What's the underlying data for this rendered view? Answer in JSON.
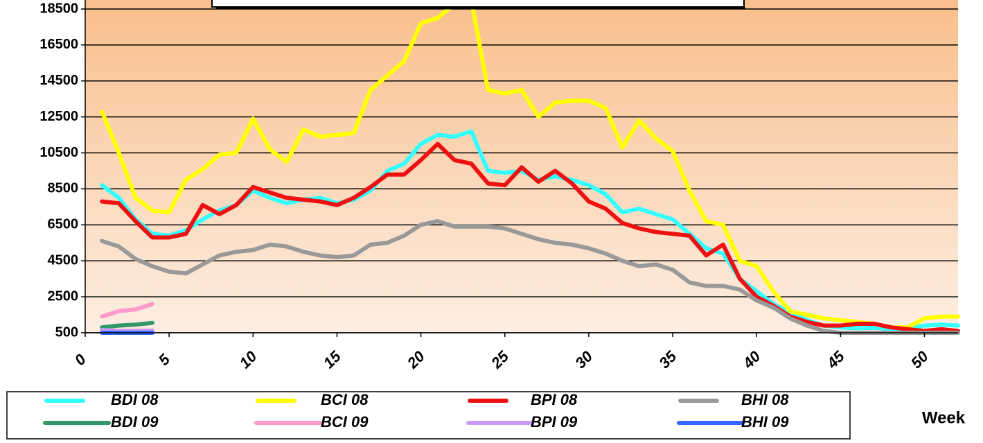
{
  "chart_data": {
    "type": "line",
    "x_label": "Week",
    "x": [
      1,
      2,
      3,
      4,
      5,
      6,
      7,
      8,
      9,
      10,
      11,
      12,
      13,
      14,
      15,
      16,
      17,
      18,
      19,
      20,
      21,
      22,
      23,
      24,
      25,
      26,
      27,
      28,
      29,
      30,
      31,
      32,
      33,
      34,
      35,
      36,
      37,
      38,
      39,
      40,
      41,
      42,
      43,
      44,
      45,
      46,
      47,
      48,
      49,
      50,
      51,
      52
    ],
    "xlim": [
      0,
      52
    ],
    "xticks": [
      0,
      5,
      10,
      15,
      20,
      25,
      30,
      35,
      40,
      45,
      50
    ],
    "ylim": [
      500,
      19000
    ],
    "yticks": [
      500,
      2500,
      4500,
      6500,
      8500,
      10500,
      12500,
      14500,
      16500,
      18500
    ],
    "grid": true,
    "series": [
      {
        "name": "BDI 08",
        "color": "#33ffff",
        "values": [
          8700,
          8000,
          6800,
          6000,
          5900,
          6200,
          6800,
          7300,
          7600,
          8400,
          8000,
          7700,
          7900,
          8000,
          7700,
          7900,
          8400,
          9500,
          9900,
          11000,
          11500,
          11400,
          11700,
          9500,
          9400,
          9500,
          9000,
          9200,
          9000,
          8700,
          8200,
          7200,
          7400,
          7100,
          6800,
          6000,
          5200,
          4900,
          3500,
          2800,
          2100,
          1600,
          1200,
          900,
          800,
          750,
          780,
          700,
          720,
          900,
          950,
          900
        ]
      },
      {
        "name": "BCI 08",
        "color": "#ffff00",
        "values": [
          12800,
          10500,
          8000,
          7300,
          7200,
          9000,
          9600,
          10400,
          10500,
          12400,
          10700,
          10000,
          11800,
          11400,
          11500,
          11600,
          14000,
          14800,
          15600,
          17700,
          18000,
          18800,
          19000,
          14000,
          13800,
          14000,
          12500,
          13300,
          13400,
          13400,
          13000,
          10800,
          12300,
          11300,
          10600,
          8400,
          6700,
          6500,
          4500,
          4200,
          2800,
          1700,
          1500,
          1300,
          1200,
          1100,
          1000,
          800,
          800,
          1300,
          1400,
          1400
        ]
      },
      {
        "name": "BPI 08",
        "color": "#ee1111",
        "values": [
          7800,
          7700,
          6700,
          5800,
          5800,
          6000,
          7600,
          7100,
          7600,
          8600,
          8300,
          8000,
          7900,
          7800,
          7600,
          8000,
          8600,
          9300,
          9300,
          10100,
          11000,
          10100,
          9900,
          8800,
          8700,
          9700,
          8900,
          9500,
          8800,
          7800,
          7400,
          6600,
          6300,
          6100,
          6000,
          5900,
          4800,
          5400,
          3500,
          2500,
          2000,
          1400,
          1100,
          900,
          900,
          1000,
          1000,
          800,
          700,
          600,
          700,
          600
        ]
      },
      {
        "name": "BHI 08",
        "color": "#999999",
        "values": [
          5600,
          5300,
          4600,
          4200,
          3900,
          3800,
          4300,
          4800,
          5000,
          5100,
          5400,
          5300,
          5000,
          4800,
          4700,
          4800,
          5400,
          5500,
          5900,
          6500,
          6700,
          6400,
          6400,
          6400,
          6300,
          6000,
          5700,
          5500,
          5400,
          5200,
          4900,
          4500,
          4200,
          4300,
          4000,
          3300,
          3100,
          3100,
          2900,
          2300,
          1900,
          1300,
          900,
          600,
          500,
          500,
          500,
          500,
          500,
          500,
          500,
          500
        ]
      },
      {
        "name": "BDI 09",
        "color": "#339966",
        "values": [
          800,
          900,
          950,
          1050,
          null,
          null,
          null,
          null,
          null,
          null,
          null,
          null,
          null,
          null,
          null,
          null,
          null,
          null,
          null,
          null,
          null,
          null,
          null,
          null,
          null,
          null,
          null,
          null,
          null,
          null,
          null,
          null,
          null,
          null,
          null,
          null,
          null,
          null,
          null,
          null,
          null,
          null,
          null,
          null,
          null,
          null,
          null,
          null,
          null,
          null,
          null,
          null
        ]
      },
      {
        "name": "BCI 09",
        "color": "#ff99cc",
        "values": [
          1400,
          1700,
          1800,
          2100,
          null,
          null,
          null,
          null,
          null,
          null,
          null,
          null,
          null,
          null,
          null,
          null,
          null,
          null,
          null,
          null,
          null,
          null,
          null,
          null,
          null,
          null,
          null,
          null,
          null,
          null,
          null,
          null,
          null,
          null,
          null,
          null,
          null,
          null,
          null,
          null,
          null,
          null,
          null,
          null,
          null,
          null,
          null,
          null,
          null,
          null,
          null,
          null
        ]
      },
      {
        "name": "BPI 09",
        "color": "#cc99ff",
        "values": [
          650,
          600,
          600,
          620,
          null,
          null,
          null,
          null,
          null,
          null,
          null,
          null,
          null,
          null,
          null,
          null,
          null,
          null,
          null,
          null,
          null,
          null,
          null,
          null,
          null,
          null,
          null,
          null,
          null,
          null,
          null,
          null,
          null,
          null,
          null,
          null,
          null,
          null,
          null,
          null,
          null,
          null,
          null,
          null,
          null,
          null,
          null,
          null,
          null,
          null,
          null,
          null
        ]
      },
      {
        "name": "BHI 09",
        "color": "#3366ff",
        "values": [
          500,
          500,
          500,
          500,
          null,
          null,
          null,
          null,
          null,
          null,
          null,
          null,
          null,
          null,
          null,
          null,
          null,
          null,
          null,
          null,
          null,
          null,
          null,
          null,
          null,
          null,
          null,
          null,
          null,
          null,
          null,
          null,
          null,
          null,
          null,
          null,
          null,
          null,
          null,
          null,
          null,
          null,
          null,
          null,
          null,
          null,
          null,
          null,
          null,
          null,
          null,
          null
        ]
      }
    ]
  }
}
